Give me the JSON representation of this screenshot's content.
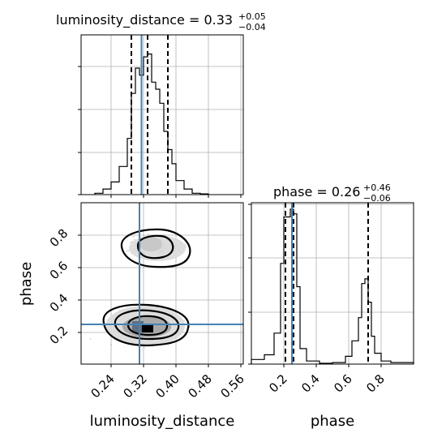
{
  "chart_data": {
    "type": "corner",
    "parameters": [
      "luminosity_distance",
      "phase"
    ],
    "truths": {
      "luminosity_distance": 0.315,
      "phase": 0.25
    },
    "truth_color": "#4682b4",
    "panels": [
      {
        "id": "luminosity_distance-hist",
        "title": {
          "main": "luminosity_distance = 0.33",
          "plus": "+0.05",
          "minus": "−0.04"
        },
        "quantiles": [
          0.29,
          0.33,
          0.38
        ],
        "xlim": [
          0.2,
          0.6
        ],
        "histogram": {
          "edges": [
            0.2,
            0.22,
            0.24,
            0.26,
            0.28,
            0.29,
            0.3,
            0.31,
            0.32,
            0.33,
            0.34,
            0.35,
            0.36,
            0.37,
            0.38,
            0.39,
            0.4,
            0.42,
            0.44,
            0.46,
            0.48
          ],
          "heights": [
            0.01,
            0.04,
            0.09,
            0.2,
            0.4,
            0.72,
            0.9,
            0.85,
            0.98,
            1.0,
            0.8,
            0.75,
            0.65,
            0.45,
            0.32,
            0.22,
            0.1,
            0.04,
            0.01,
            0.005
          ]
        }
      },
      {
        "id": "phase-hist",
        "title": {
          "main": "phase = 0.26",
          "plus": "+0.46",
          "minus": "−0.06"
        },
        "quantiles": [
          0.21,
          0.26,
          0.72
        ],
        "xlim": [
          0.0,
          1.0
        ],
        "histogram": {
          "edges": [
            0.0,
            0.08,
            0.14,
            0.18,
            0.2,
            0.22,
            0.24,
            0.26,
            0.28,
            0.3,
            0.34,
            0.42,
            0.5,
            0.58,
            0.62,
            0.66,
            0.68,
            0.7,
            0.72,
            0.74,
            0.76,
            0.8,
            0.86,
            1.0
          ],
          "heights": [
            0.03,
            0.06,
            0.2,
            0.65,
            0.95,
            0.95,
            1.0,
            0.97,
            0.5,
            0.1,
            0.02,
            0.005,
            0.01,
            0.05,
            0.15,
            0.3,
            0.52,
            0.55,
            0.4,
            0.18,
            0.07,
            0.02,
            0.01
          ]
        }
      },
      {
        "id": "joint",
        "xlim": [
          0.2,
          0.6
        ],
        "ylim": [
          0.0,
          1.0
        ],
        "modes": [
          {
            "cx": 0.33,
            "cy": 0.24,
            "rx": 0.06,
            "ry": 0.06,
            "weight": 0.58
          },
          {
            "cx": 0.35,
            "cy": 0.73,
            "rx": 0.05,
            "ry": 0.045,
            "weight": 0.42
          }
        ],
        "contour_levels": [
          "0.39",
          "0.86",
          "0.99"
        ]
      }
    ],
    "x_ticks": {
      "luminosity_distance": [
        "0.24",
        "0.32",
        "0.40",
        "0.48",
        "0.56"
      ],
      "phase": [
        "0.2",
        "0.4",
        "0.6",
        "0.8"
      ]
    },
    "y_ticks": {
      "phase": [
        "0.2",
        "0.4",
        "0.6",
        "0.8"
      ]
    },
    "xlabel_left": "luminosity_distance",
    "xlabel_right": "phase",
    "ylabel_bottom": "phase",
    "grid": true
  }
}
